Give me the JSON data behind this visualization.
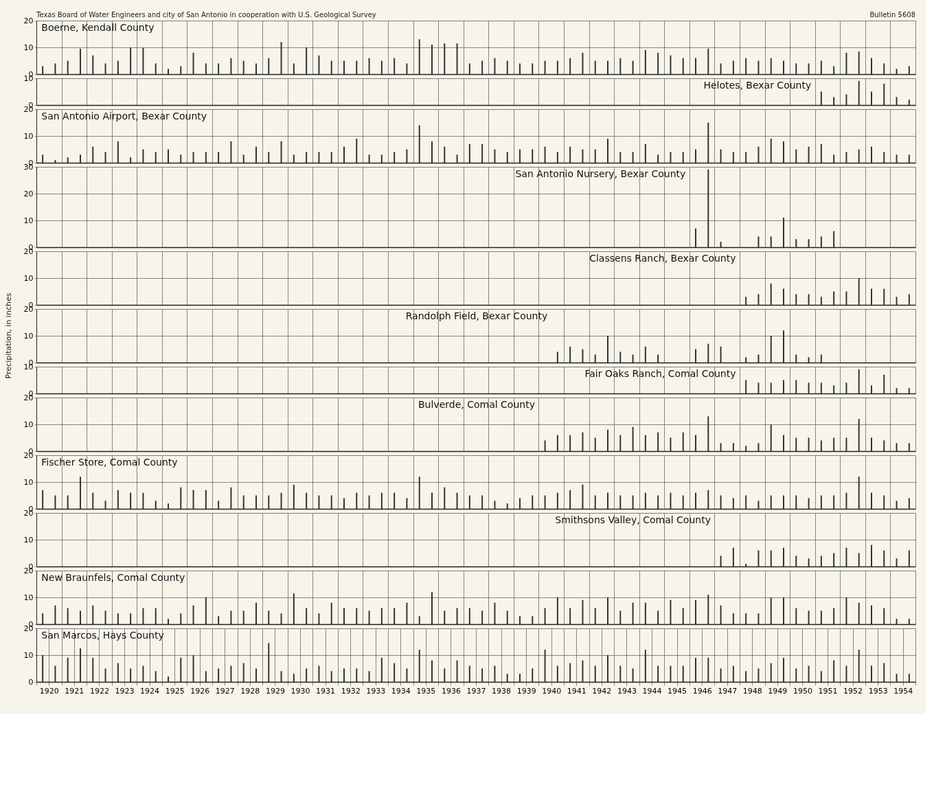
{
  "chart_data": [
    {
      "type": "bar",
      "title": "Boerne, Kendall County",
      "annotations": [
        "Texas Board of Water Engineers and  city of San Antonio in cooperation with U.S. Geological Survey",
        "Bulletin 5608"
      ],
      "xlim": [
        1920,
        1955
      ],
      "xticks": [
        1920,
        1921,
        1922,
        1923,
        1924,
        1925,
        1926,
        1927,
        1928,
        1929,
        1930,
        1931,
        1932,
        1933,
        1934,
        1935,
        1936,
        1937,
        1938,
        1939,
        1940,
        1941,
        1942,
        1943,
        1944,
        1945,
        1946,
        1947,
        1948,
        1949,
        1950,
        1951,
        1952,
        1953,
        1954,
        1955
      ],
      "ylim": [
        0,
        20
      ],
      "yticks": [
        0,
        10,
        20
      ],
      "grid": true,
      "tick_labels": "y",
      "color": "#333333",
      "x": [
        1920.25,
        1920.75,
        1921.25,
        1921.75,
        1922.25,
        1922.75,
        1923.25,
        1923.75,
        1924.25,
        1924.75,
        1925.25,
        1925.75,
        1926.25,
        1926.75,
        1927.25,
        1927.75,
        1928.25,
        1928.75,
        1929.25,
        1929.75,
        1930.25,
        1930.75,
        1931.25,
        1931.75,
        1932.25,
        1932.75,
        1933.25,
        1933.75,
        1934.25,
        1934.75,
        1935.25,
        1935.75,
        1936.25,
        1936.75,
        1937.25,
        1937.75,
        1938.25,
        1938.75,
        1939.25,
        1939.75,
        1940.25,
        1940.75,
        1941.25,
        1941.75,
        1942.25,
        1942.75,
        1943.25,
        1943.75,
        1944.25,
        1944.75,
        1945.25,
        1945.75,
        1946.25,
        1946.75,
        1947.25,
        1947.75,
        1948.25,
        1948.75,
        1949.25,
        1949.75,
        1950.25,
        1950.75,
        1951.25,
        1951.75,
        1952.25,
        1952.75,
        1953.25,
        1953.75,
        1954.25,
        1954.75
      ],
      "values": [
        3,
        4,
        5,
        9.5,
        7,
        4,
        5,
        10,
        9.8,
        4,
        2,
        3,
        8,
        4,
        4,
        6,
        5,
        4,
        6,
        12,
        4,
        10,
        7,
        5,
        5,
        5,
        6,
        5,
        6,
        4,
        13,
        11,
        11.5,
        11.5,
        4,
        5,
        6,
        5,
        4,
        4,
        5,
        5,
        6,
        8,
        5,
        5,
        6,
        5,
        9,
        8,
        7,
        6,
        6,
        9.5,
        4,
        5,
        6,
        5,
        6,
        5,
        4,
        4,
        5,
        3,
        8,
        8.5,
        6,
        4,
        2,
        3
      ]
    },
    {
      "type": "bar",
      "title": "Helotes, Bexar County",
      "xlim": [
        1920,
        1955
      ],
      "xticks": [
        1920,
        1921,
        1922,
        1923,
        1924,
        1925,
        1926,
        1927,
        1928,
        1929,
        1930,
        1931,
        1932,
        1933,
        1934,
        1935,
        1936,
        1937,
        1938,
        1939,
        1940,
        1941,
        1942,
        1943,
        1944,
        1945,
        1946,
        1947,
        1948,
        1949,
        1950,
        1951,
        1952,
        1953,
        1954,
        1955
      ],
      "ylim": [
        0,
        10
      ],
      "yticks": [
        0,
        10
      ],
      "grid": true,
      "tick_labels": "y",
      "color": "#333333",
      "x": [
        1951.25,
        1951.75,
        1952.25,
        1952.75,
        1953.25,
        1953.75,
        1954.25,
        1954.75
      ],
      "values": [
        5,
        3,
        4,
        9,
        5,
        8,
        3,
        2
      ]
    },
    {
      "type": "bar",
      "title": "San Antonio Airport, Bexar County",
      "xlim": [
        1920,
        1955
      ],
      "xticks": [
        1920,
        1921,
        1922,
        1923,
        1924,
        1925,
        1926,
        1927,
        1928,
        1929,
        1930,
        1931,
        1932,
        1933,
        1934,
        1935,
        1936,
        1937,
        1938,
        1939,
        1940,
        1941,
        1942,
        1943,
        1944,
        1945,
        1946,
        1947,
        1948,
        1949,
        1950,
        1951,
        1952,
        1953,
        1954,
        1955
      ],
      "ylim": [
        0,
        20
      ],
      "yticks": [
        0,
        10,
        20
      ],
      "grid": true,
      "tick_labels": "y",
      "color": "#333333",
      "x": [
        1920.25,
        1920.75,
        1921.25,
        1921.75,
        1922.25,
        1922.75,
        1923.25,
        1923.75,
        1924.25,
        1924.75,
        1925.25,
        1925.75,
        1926.25,
        1926.75,
        1927.25,
        1927.75,
        1928.25,
        1928.75,
        1929.25,
        1929.75,
        1930.25,
        1930.75,
        1931.25,
        1931.75,
        1932.25,
        1932.75,
        1933.25,
        1933.75,
        1934.25,
        1934.75,
        1935.25,
        1935.75,
        1936.25,
        1936.75,
        1937.25,
        1937.75,
        1938.25,
        1938.75,
        1939.25,
        1939.75,
        1940.25,
        1940.75,
        1941.25,
        1941.75,
        1942.25,
        1942.75,
        1943.25,
        1943.75,
        1944.25,
        1944.75,
        1945.25,
        1945.75,
        1946.25,
        1946.75,
        1947.25,
        1947.75,
        1948.25,
        1948.75,
        1949.25,
        1949.75,
        1950.25,
        1950.75,
        1951.25,
        1951.75,
        1952.25,
        1952.75,
        1953.25,
        1953.75,
        1954.25,
        1954.75
      ],
      "values": [
        3,
        1,
        2,
        3,
        6,
        4,
        8,
        2,
        5,
        4,
        5,
        3,
        4,
        4,
        4,
        8,
        3,
        6,
        4,
        8,
        3,
        4,
        4,
        4,
        6,
        9,
        3,
        3,
        4,
        5,
        14,
        8,
        6,
        3,
        7,
        7,
        5,
        4,
        5,
        5,
        6,
        4,
        6,
        5,
        5,
        9,
        4,
        4,
        7,
        3,
        4,
        4,
        5,
        15,
        5,
        4,
        4,
        6,
        9,
        8,
        5,
        6,
        7,
        3,
        4,
        5,
        6,
        4,
        3,
        3
      ]
    },
    {
      "type": "bar",
      "title": "San Antonio Nursery, Bexar County",
      "xlim": [
        1920,
        1955
      ],
      "xticks": [
        1920,
        1921,
        1922,
        1923,
        1924,
        1925,
        1926,
        1927,
        1928,
        1929,
        1930,
        1931,
        1932,
        1933,
        1934,
        1935,
        1936,
        1937,
        1938,
        1939,
        1940,
        1941,
        1942,
        1943,
        1944,
        1945,
        1946,
        1947,
        1948,
        1949,
        1950,
        1951,
        1952,
        1953,
        1954,
        1955
      ],
      "ylim": [
        0,
        30
      ],
      "yticks": [
        0,
        10,
        20,
        30
      ],
      "grid": true,
      "tick_labels": "y",
      "color": "#333333",
      "x": [
        1946.25,
        1946.75,
        1947.25,
        1948.75,
        1949.25,
        1949.75,
        1950.25,
        1950.75,
        1951.25,
        1951.75
      ],
      "values": [
        7,
        29,
        2,
        4,
        4,
        11,
        3,
        3,
        4,
        6
      ]
    },
    {
      "type": "bar",
      "title": "Classens Ranch, Bexar County",
      "xlim": [
        1920,
        1955
      ],
      "xticks": [
        1920,
        1921,
        1922,
        1923,
        1924,
        1925,
        1926,
        1927,
        1928,
        1929,
        1930,
        1931,
        1932,
        1933,
        1934,
        1935,
        1936,
        1937,
        1938,
        1939,
        1940,
        1941,
        1942,
        1943,
        1944,
        1945,
        1946,
        1947,
        1948,
        1949,
        1950,
        1951,
        1952,
        1953,
        1954,
        1955
      ],
      "ylim": [
        0,
        20
      ],
      "yticks": [
        0,
        10,
        20
      ],
      "grid": true,
      "tick_labels": "y",
      "color": "#333333",
      "x": [
        1948.25,
        1948.75,
        1949.25,
        1949.75,
        1950.25,
        1950.75,
        1951.25,
        1951.75,
        1952.25,
        1952.75,
        1953.25,
        1953.75,
        1954.25,
        1954.75
      ],
      "values": [
        3,
        4,
        8,
        6,
        4,
        4,
        3,
        5,
        5,
        10,
        6,
        6,
        3,
        4
      ]
    },
    {
      "type": "bar",
      "title": "Randolph Field, Bexar County",
      "ylabel": "Precipitation, in inches",
      "xlim": [
        1920,
        1955
      ],
      "xticks": [
        1920,
        1921,
        1922,
        1923,
        1924,
        1925,
        1926,
        1927,
        1928,
        1929,
        1930,
        1931,
        1932,
        1933,
        1934,
        1935,
        1936,
        1937,
        1938,
        1939,
        1940,
        1941,
        1942,
        1943,
        1944,
        1945,
        1946,
        1947,
        1948,
        1949,
        1950,
        1951,
        1952,
        1953,
        1954,
        1955
      ],
      "ylim": [
        0,
        20
      ],
      "yticks": [
        0,
        10,
        20
      ],
      "grid": true,
      "tick_labels": "y",
      "color": "#333333",
      "x": [
        1940.75,
        1941.25,
        1941.75,
        1942.25,
        1942.75,
        1943.25,
        1943.75,
        1944.25,
        1944.75,
        1946.25,
        1946.75,
        1947.25,
        1948.25,
        1948.75,
        1949.25,
        1949.75,
        1950.25,
        1950.75,
        1951.25
      ],
      "values": [
        4,
        6,
        5,
        3,
        10,
        4,
        3,
        6,
        3,
        5,
        7,
        6,
        2,
        3,
        10,
        12,
        3,
        2,
        3
      ]
    },
    {
      "type": "bar",
      "title": "Fair Oaks Ranch, Comal County",
      "xlim": [
        1920,
        1955
      ],
      "xticks": [
        1920,
        1921,
        1922,
        1923,
        1924,
        1925,
        1926,
        1927,
        1928,
        1929,
        1930,
        1931,
        1932,
        1933,
        1934,
        1935,
        1936,
        1937,
        1938,
        1939,
        1940,
        1941,
        1942,
        1943,
        1944,
        1945,
        1946,
        1947,
        1948,
        1949,
        1950,
        1951,
        1952,
        1953,
        1954,
        1955
      ],
      "ylim": [
        0,
        10
      ],
      "yticks": [
        0,
        10
      ],
      "grid": true,
      "tick_labels": "y",
      "color": "#333333",
      "x": [
        1948.25,
        1948.75,
        1949.25,
        1949.75,
        1950.25,
        1950.75,
        1951.25,
        1951.75,
        1952.25,
        1952.75,
        1953.25,
        1953.75,
        1954.25,
        1954.75
      ],
      "values": [
        5,
        4,
        4,
        5,
        5,
        4,
        4,
        3,
        4,
        9,
        3,
        7,
        2,
        2
      ]
    },
    {
      "type": "bar",
      "title": "Bulverde, Comal County",
      "xlim": [
        1920,
        1955
      ],
      "xticks": [
        1920,
        1921,
        1922,
        1923,
        1924,
        1925,
        1926,
        1927,
        1928,
        1929,
        1930,
        1931,
        1932,
        1933,
        1934,
        1935,
        1936,
        1937,
        1938,
        1939,
        1940,
        1941,
        1942,
        1943,
        1944,
        1945,
        1946,
        1947,
        1948,
        1949,
        1950,
        1951,
        1952,
        1953,
        1954,
        1955
      ],
      "ylim": [
        0,
        20
      ],
      "yticks": [
        0,
        10,
        20
      ],
      "grid": true,
      "tick_labels": "y",
      "color": "#333333",
      "x": [
        1940.25,
        1940.75,
        1941.25,
        1941.75,
        1942.25,
        1942.75,
        1943.25,
        1943.75,
        1944.25,
        1944.75,
        1945.25,
        1945.75,
        1946.25,
        1946.75,
        1947.25,
        1947.75,
        1948.25,
        1948.75,
        1949.25,
        1949.75,
        1950.25,
        1950.75,
        1951.25,
        1951.75,
        1952.25,
        1952.75,
        1953.25,
        1953.75,
        1954.25,
        1954.75
      ],
      "values": [
        4,
        6,
        6,
        7,
        5,
        8,
        6,
        9,
        6,
        7,
        5,
        7,
        6,
        13,
        3,
        3,
        2,
        3,
        10,
        6,
        5,
        5,
        4,
        5,
        5,
        12,
        5,
        4,
        3,
        3
      ]
    },
    {
      "type": "bar",
      "title": "Fischer Store, Comal County",
      "xlim": [
        1920,
        1955
      ],
      "xticks": [
        1920,
        1921,
        1922,
        1923,
        1924,
        1925,
        1926,
        1927,
        1928,
        1929,
        1930,
        1931,
        1932,
        1933,
        1934,
        1935,
        1936,
        1937,
        1938,
        1939,
        1940,
        1941,
        1942,
        1943,
        1944,
        1945,
        1946,
        1947,
        1948,
        1949,
        1950,
        1951,
        1952,
        1953,
        1954,
        1955
      ],
      "ylim": [
        0,
        20
      ],
      "yticks": [
        0,
        10,
        20
      ],
      "grid": true,
      "tick_labels": "y",
      "color": "#333333",
      "x": [
        1920.25,
        1920.75,
        1921.25,
        1921.75,
        1922.25,
        1922.75,
        1923.25,
        1923.75,
        1924.25,
        1924.75,
        1925.25,
        1925.75,
        1926.25,
        1926.75,
        1927.25,
        1927.75,
        1928.25,
        1928.75,
        1929.25,
        1929.75,
        1930.25,
        1930.75,
        1931.25,
        1931.75,
        1932.25,
        1932.75,
        1933.25,
        1933.75,
        1934.25,
        1934.75,
        1935.25,
        1935.75,
        1936.25,
        1936.75,
        1937.25,
        1937.75,
        1938.25,
        1938.75,
        1939.25,
        1939.75,
        1940.25,
        1940.75,
        1941.25,
        1941.75,
        1942.25,
        1942.75,
        1943.25,
        1943.75,
        1944.25,
        1944.75,
        1945.25,
        1945.75,
        1946.25,
        1946.75,
        1947.25,
        1947.75,
        1948.25,
        1948.75,
        1949.25,
        1949.75,
        1950.25,
        1950.75,
        1951.25,
        1951.75,
        1952.25,
        1952.75,
        1953.25,
        1953.75,
        1954.25,
        1954.75
      ],
      "values": [
        7,
        5,
        5,
        12,
        6,
        3,
        7,
        6,
        6,
        3,
        2,
        8,
        7,
        7,
        3,
        8,
        5,
        5,
        5,
        6,
        9,
        6,
        5,
        5,
        4,
        6,
        5,
        6,
        6,
        4,
        12,
        6,
        8,
        6,
        5,
        5,
        3,
        2,
        4,
        5,
        5,
        6,
        7,
        9,
        5,
        6,
        5,
        5,
        6,
        5,
        6,
        5,
        6,
        7,
        5,
        4,
        5,
        3,
        5,
        5,
        5,
        4,
        5,
        5,
        6,
        12,
        6,
        5,
        3,
        4
      ]
    },
    {
      "type": "bar",
      "title": "Smithsons Valley, Comal County",
      "xlim": [
        1920,
        1955
      ],
      "xticks": [
        1920,
        1921,
        1922,
        1923,
        1924,
        1925,
        1926,
        1927,
        1928,
        1929,
        1930,
        1931,
        1932,
        1933,
        1934,
        1935,
        1936,
        1937,
        1938,
        1939,
        1940,
        1941,
        1942,
        1943,
        1944,
        1945,
        1946,
        1947,
        1948,
        1949,
        1950,
        1951,
        1952,
        1953,
        1954,
        1955
      ],
      "ylim": [
        0,
        20
      ],
      "yticks": [
        0,
        10,
        20
      ],
      "grid": true,
      "tick_labels": "y",
      "color": "#333333",
      "x": [
        1947.25,
        1947.75,
        1948.25,
        1948.75,
        1949.25,
        1949.75,
        1950.25,
        1950.75,
        1951.25,
        1951.75,
        1952.25,
        1952.75,
        1953.25,
        1953.75,
        1954.25,
        1954.75
      ],
      "values": [
        4,
        7,
        1,
        6,
        6,
        7,
        4,
        3,
        4,
        5,
        7,
        5,
        8,
        6,
        3,
        6
      ]
    },
    {
      "type": "bar",
      "title": "New Braunfels, Comal County",
      "xlim": [
        1920,
        1955
      ],
      "xticks": [
        1920,
        1921,
        1922,
        1923,
        1924,
        1925,
        1926,
        1927,
        1928,
        1929,
        1930,
        1931,
        1932,
        1933,
        1934,
        1935,
        1936,
        1937,
        1938,
        1939,
        1940,
        1941,
        1942,
        1943,
        1944,
        1945,
        1946,
        1947,
        1948,
        1949,
        1950,
        1951,
        1952,
        1953,
        1954,
        1955
      ],
      "ylim": [
        0,
        20
      ],
      "yticks": [
        0,
        10,
        20
      ],
      "grid": true,
      "tick_labels": "y",
      "color": "#333333",
      "x": [
        1920.25,
        1920.75,
        1921.25,
        1921.75,
        1922.25,
        1922.75,
        1923.25,
        1923.75,
        1924.25,
        1924.75,
        1925.25,
        1925.75,
        1926.25,
        1926.75,
        1927.25,
        1927.75,
        1928.25,
        1928.75,
        1929.25,
        1929.75,
        1930.25,
        1930.75,
        1931.25,
        1931.75,
        1932.25,
        1932.75,
        1933.25,
        1933.75,
        1934.25,
        1934.75,
        1935.25,
        1935.75,
        1936.25,
        1936.75,
        1937.25,
        1937.75,
        1938.25,
        1938.75,
        1939.25,
        1939.75,
        1940.25,
        1940.75,
        1941.25,
        1941.75,
        1942.25,
        1942.75,
        1943.25,
        1943.75,
        1944.25,
        1944.75,
        1945.25,
        1945.75,
        1946.25,
        1946.75,
        1947.25,
        1947.75,
        1948.25,
        1948.75,
        1949.25,
        1949.75,
        1950.25,
        1950.75,
        1951.25,
        1951.75,
        1952.25,
        1952.75,
        1953.25,
        1953.75,
        1954.25,
        1954.75
      ],
      "values": [
        4,
        7,
        6,
        5,
        7,
        5,
        4,
        4,
        6,
        6,
        2,
        4,
        7,
        10,
        3,
        5,
        5,
        8,
        5,
        4,
        11.5,
        6,
        4,
        8,
        6,
        6,
        5,
        6,
        6,
        8,
        3,
        12,
        5,
        6,
        6,
        5,
        8,
        5,
        3,
        3,
        6,
        10,
        6,
        9,
        6,
        10,
        5,
        8,
        8,
        5,
        9,
        6,
        9,
        11,
        7,
        4,
        4,
        4,
        10,
        10,
        6,
        5,
        5,
        6,
        10,
        8,
        7,
        6,
        2,
        2
      ]
    },
    {
      "type": "bar",
      "title": "San Marcos, Hays County",
      "xlim": [
        1920,
        1955
      ],
      "xticks": [
        {
          "value": 1920,
          "label": null
        },
        {
          "value": 1920.5,
          "label": "1920"
        },
        {
          "value": 1921,
          "label": null
        },
        {
          "value": 1921.5,
          "label": "1921"
        },
        {
          "value": 1922,
          "label": null
        },
        {
          "value": 1922.5,
          "label": "1922"
        },
        {
          "value": 1923,
          "label": null
        },
        {
          "value": 1923.5,
          "label": "1923"
        },
        {
          "value": 1924,
          "label": null
        },
        {
          "value": 1924.5,
          "label": "1924"
        },
        {
          "value": 1925,
          "label": null
        },
        {
          "value": 1925.5,
          "label": "1925"
        },
        {
          "value": 1926,
          "label": null
        },
        {
          "value": 1926.5,
          "label": "1926"
        },
        {
          "value": 1927,
          "label": null
        },
        {
          "value": 1927.5,
          "label": "1927"
        },
        {
          "value": 1928,
          "label": null
        },
        {
          "value": 1928.5,
          "label": "1928"
        },
        {
          "value": 1929,
          "label": null
        },
        {
          "value": 1929.5,
          "label": "1929"
        },
        {
          "value": 1930,
          "label": null
        },
        {
          "value": 1930.5,
          "label": "1930"
        },
        {
          "value": 1931,
          "label": null
        },
        {
          "value": 1931.5,
          "label": "1931"
        },
        {
          "value": 1932,
          "label": null
        },
        {
          "value": 1932.5,
          "label": "1932"
        },
        {
          "value": 1933,
          "label": null
        },
        {
          "value": 1933.5,
          "label": "1933"
        },
        {
          "value": 1934,
          "label": null
        },
        {
          "value": 1934.5,
          "label": "1934"
        },
        {
          "value": 1935,
          "label": null
        },
        {
          "value": 1935.5,
          "label": "1935"
        },
        {
          "value": 1936,
          "label": null
        },
        {
          "value": 1936.5,
          "label": "1936"
        },
        {
          "value": 1937,
          "label": null
        },
        {
          "value": 1937.5,
          "label": "1937"
        },
        {
          "value": 1938,
          "label": null
        },
        {
          "value": 1938.5,
          "label": "1938"
        },
        {
          "value": 1939,
          "label": null
        },
        {
          "value": 1939.5,
          "label": "1939"
        },
        {
          "value": 1940,
          "label": null
        },
        {
          "value": 1940.5,
          "label": "1940"
        },
        {
          "value": 1941,
          "label": null
        },
        {
          "value": 1941.5,
          "label": "1941"
        },
        {
          "value": 1942,
          "label": null
        },
        {
          "value": 1942.5,
          "label": "1942"
        },
        {
          "value": 1943,
          "label": null
        },
        {
          "value": 1943.5,
          "label": "1943"
        },
        {
          "value": 1944,
          "label": null
        },
        {
          "value": 1944.5,
          "label": "1944"
        },
        {
          "value": 1945,
          "label": null
        },
        {
          "value": 1945.5,
          "label": "1945"
        },
        {
          "value": 1946,
          "label": null
        },
        {
          "value": 1946.5,
          "label": "1946"
        },
        {
          "value": 1947,
          "label": null
        },
        {
          "value": 1947.5,
          "label": "1947"
        },
        {
          "value": 1948,
          "label": null
        },
        {
          "value": 1948.5,
          "label": "1948"
        },
        {
          "value": 1949,
          "label": null
        },
        {
          "value": 1949.5,
          "label": "1949"
        },
        {
          "value": 1950,
          "label": null
        },
        {
          "value": 1950.5,
          "label": "1950"
        },
        {
          "value": 1951,
          "label": null
        },
        {
          "value": 1951.5,
          "label": "1951"
        },
        {
          "value": 1952,
          "label": null
        },
        {
          "value": 1952.5,
          "label": "1952"
        },
        {
          "value": 1953,
          "label": null
        },
        {
          "value": 1953.5,
          "label": "1953"
        },
        {
          "value": 1954,
          "label": null
        },
        {
          "value": 1954.5,
          "label": "1954"
        },
        {
          "value": 1955,
          "label": null
        }
      ],
      "ylim": [
        0,
        20
      ],
      "yticks": [
        0,
        10,
        20
      ],
      "grid": true,
      "color": "#333333",
      "x": [
        1920.25,
        1920.75,
        1921.25,
        1921.75,
        1922.25,
        1922.75,
        1923.25,
        1923.75,
        1924.25,
        1924.75,
        1925.25,
        1925.75,
        1926.25,
        1926.75,
        1927.25,
        1927.75,
        1928.25,
        1928.75,
        1929.25,
        1929.75,
        1930.25,
        1930.75,
        1931.25,
        1931.75,
        1932.25,
        1932.75,
        1933.25,
        1933.75,
        1934.25,
        1934.75,
        1935.25,
        1935.75,
        1936.25,
        1936.75,
        1937.25,
        1937.75,
        1938.25,
        1938.75,
        1939.25,
        1939.75,
        1940.25,
        1940.75,
        1941.25,
        1941.75,
        1942.25,
        1942.75,
        1943.25,
        1943.75,
        1944.25,
        1944.75,
        1945.25,
        1945.75,
        1946.25,
        1946.75,
        1947.25,
        1947.75,
        1948.25,
        1948.75,
        1949.25,
        1949.75,
        1950.25,
        1950.75,
        1951.25,
        1951.75,
        1952.25,
        1952.75,
        1953.25,
        1953.75,
        1954.25,
        1954.75
      ],
      "values": [
        10,
        6,
        9,
        12.5,
        9,
        5,
        7,
        5,
        6,
        4,
        2,
        9,
        10,
        4,
        5,
        6,
        7,
        5,
        14.5,
        4,
        3,
        5,
        6,
        4,
        5,
        5,
        4,
        9,
        7,
        5,
        12,
        8,
        5,
        8,
        6,
        5,
        6,
        3,
        3,
        5,
        12,
        6,
        7,
        8,
        6,
        10,
        6,
        5,
        12,
        6,
        6,
        6,
        9,
        9,
        5,
        6,
        4,
        5,
        7,
        9,
        5,
        6,
        4,
        8,
        6,
        12,
        6,
        7,
        3,
        3
      ]
    }
  ]
}
